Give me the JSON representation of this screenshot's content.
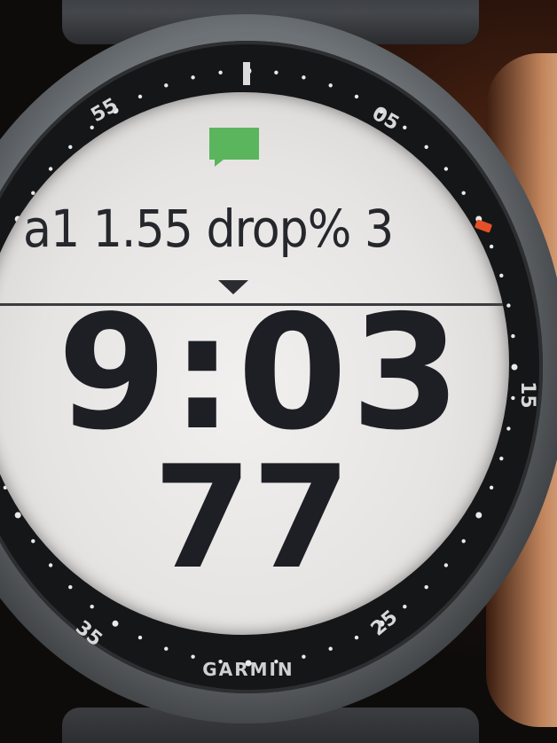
{
  "watch": {
    "brand": "GARMIN",
    "bezel_markers": [
      "55",
      "05",
      "15",
      "25",
      "35"
    ],
    "field_top": "a1 1.55 drop% 3",
    "time": "9:03",
    "value": "77",
    "notification_icon": "message-icon",
    "colors": {
      "notification": "#5bb55d",
      "lcd_background": "#e8e6e5",
      "lcd_text": "#1d1f25",
      "accent_marker": "#e4502a"
    }
  }
}
